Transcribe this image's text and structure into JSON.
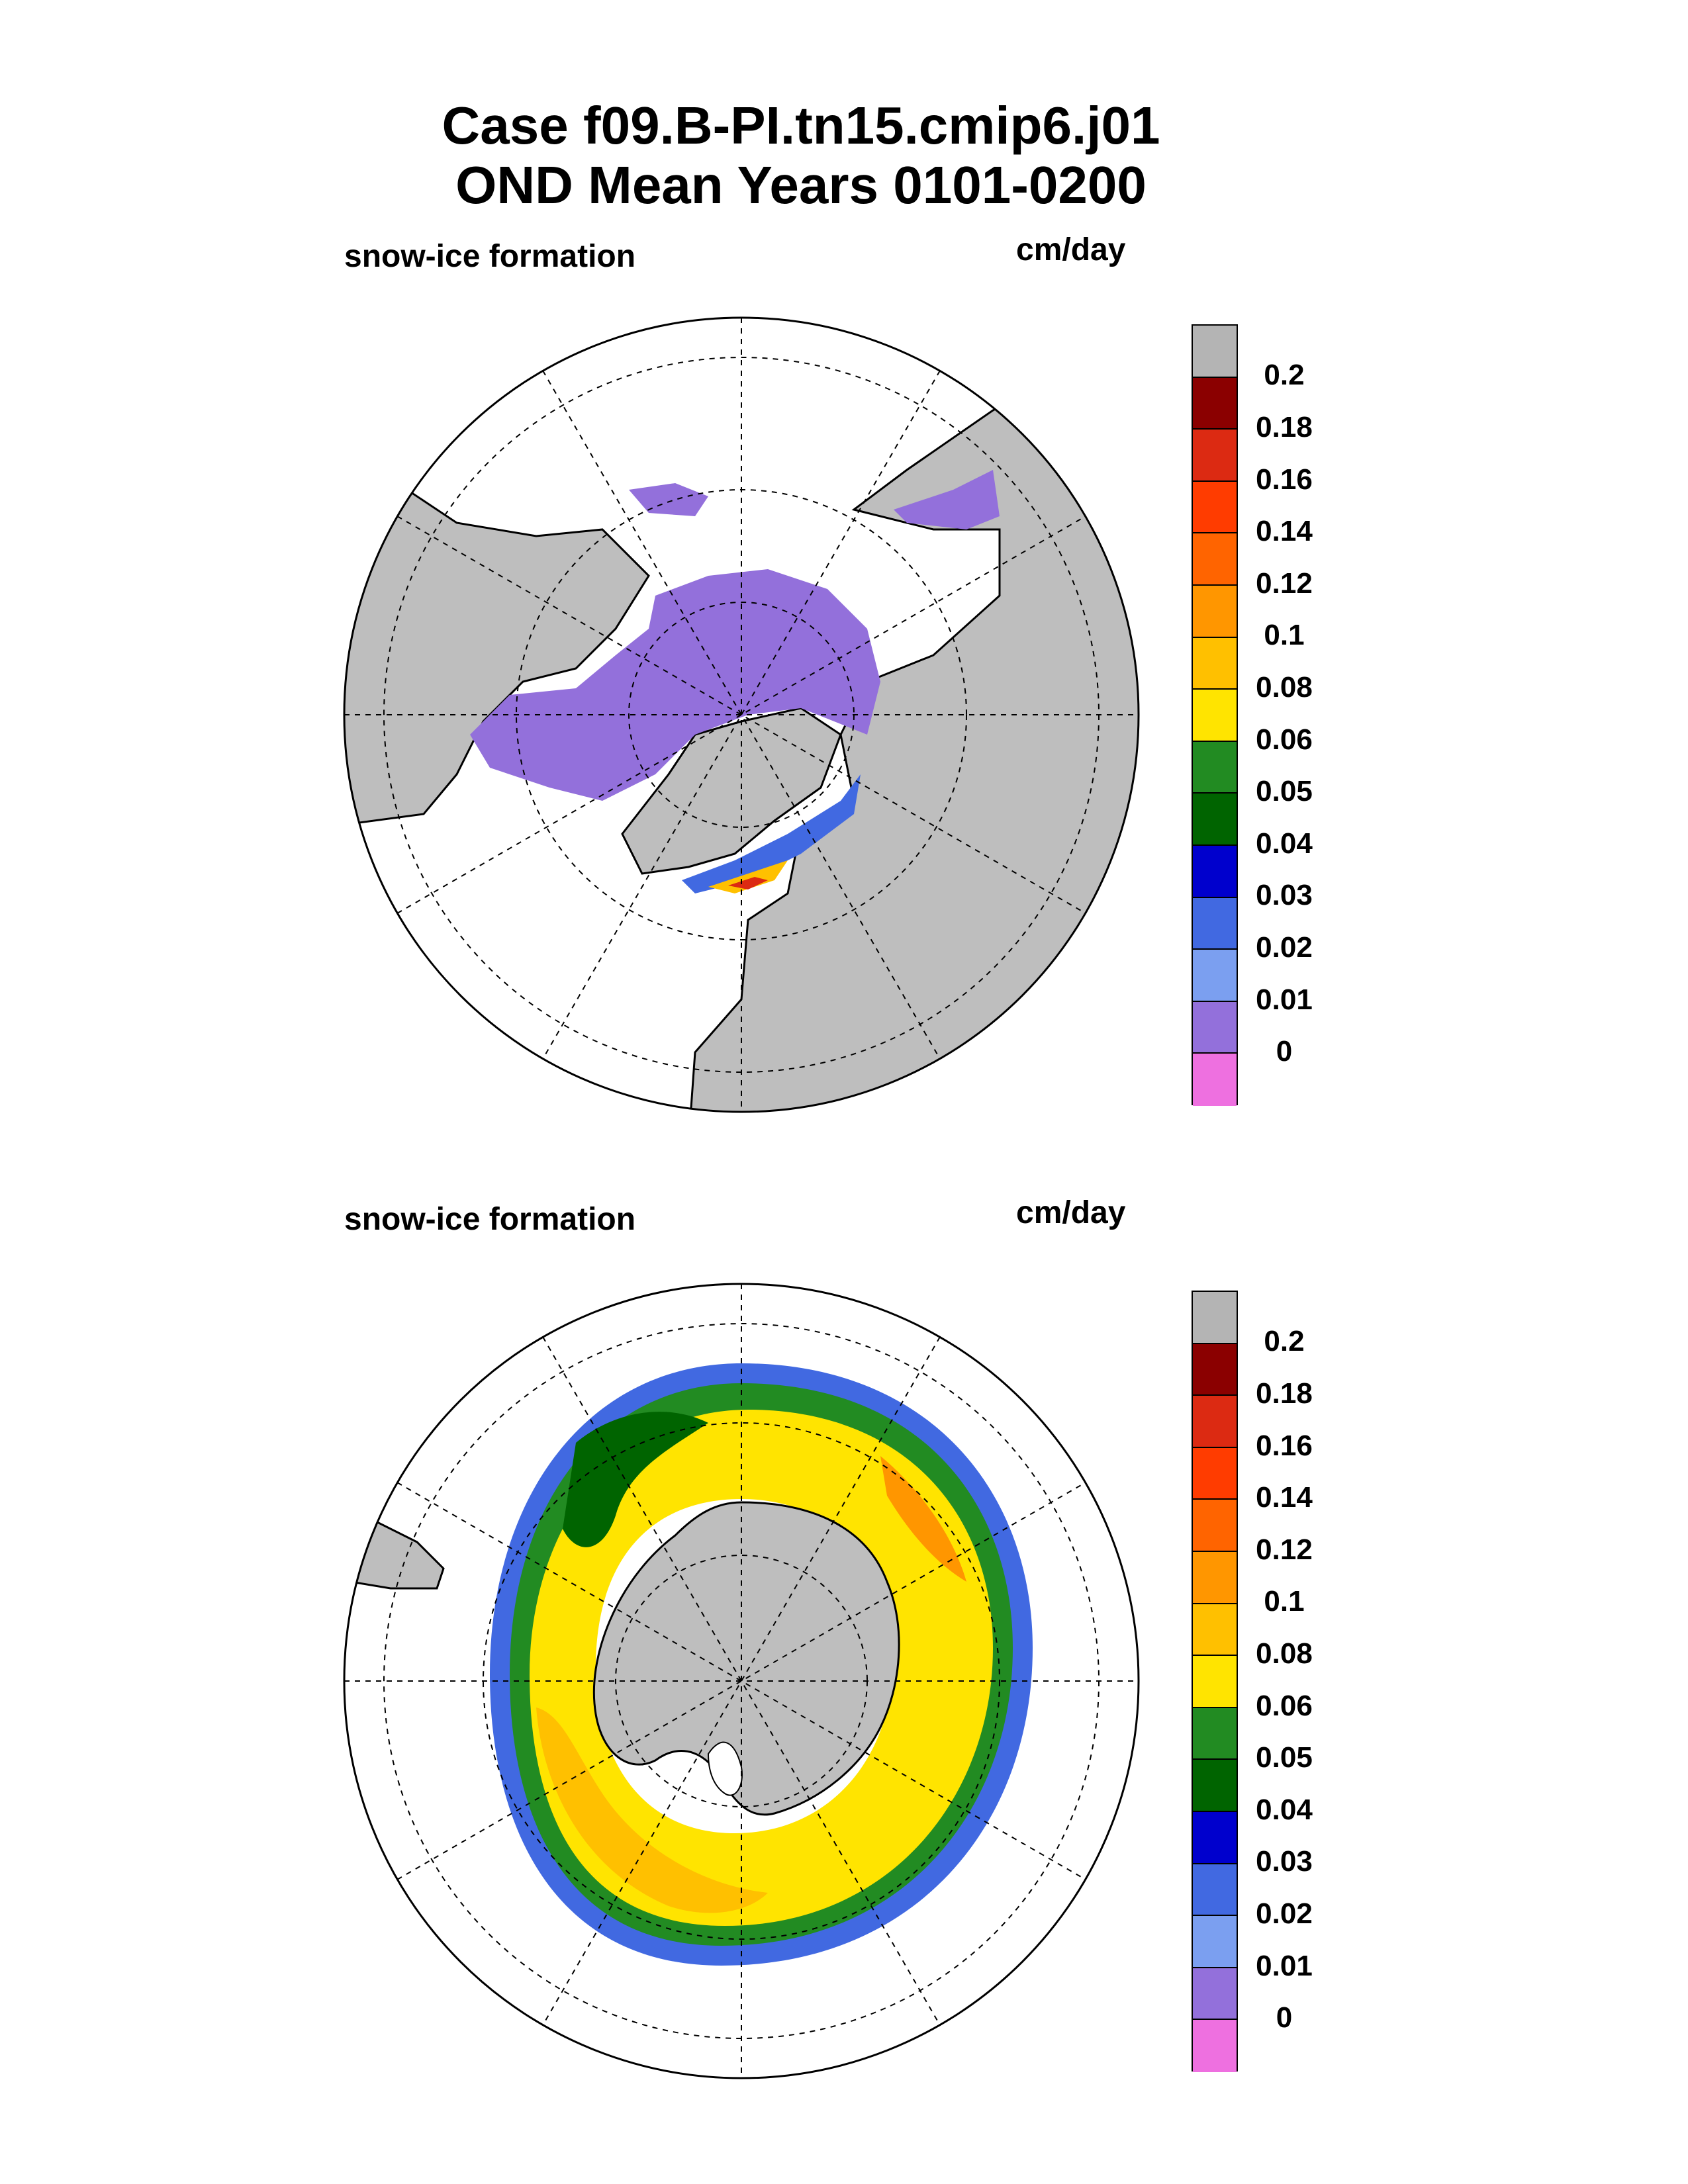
{
  "title_line1": "Case f09.B-PI.tn15.cmip6.j01",
  "title_line2": "OND Mean   Years 0101-0200",
  "panels": [
    {
      "name": "north",
      "field_label": "snow-ice formation",
      "units_label": "cm/day"
    },
    {
      "name": "south",
      "field_label": "snow-ice formation",
      "units_label": "cm/day"
    }
  ],
  "legend": {
    "labels": [
      "0.2",
      "0.18",
      "0.16",
      "0.14",
      "0.12",
      "0.1",
      "0.08",
      "0.06",
      "0.05",
      "0.04",
      "0.03",
      "0.02",
      "0.01",
      "0"
    ],
    "colors": [
      "#b4b4b4",
      "#8b0000",
      "#dc2a12",
      "#ff3c00",
      "#ff6400",
      "#ff9600",
      "#ffc000",
      "#ffe400",
      "#228b22",
      "#006400",
      "#0000cd",
      "#4169e1",
      "#7b9ff0",
      "#9370db",
      "#ee70e0"
    ]
  },
  "colors": {
    "land": "#bebebe",
    "ocean": "#ffffff",
    "coast": "#000000"
  }
}
